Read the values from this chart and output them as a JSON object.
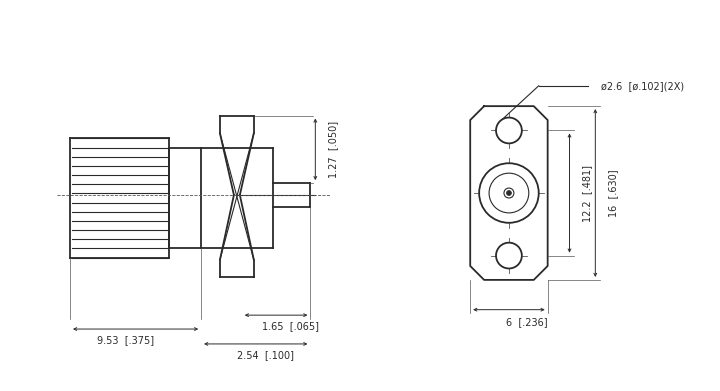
{
  "bg_color": "#ffffff",
  "line_color": "#2a2a2a",
  "annotations": {
    "dia_label": "ø2.6  [ø.102](2X)",
    "dim_127": "1.27  [.050]",
    "dim_165": "1.65  [.065]",
    "dim_953": "9.53  [.375]",
    "dim_254": "2.54  [.100]",
    "dim_122": "12.2  [.481]",
    "dim_16": "16  [.630]",
    "dim_6": "6  [.236]"
  }
}
